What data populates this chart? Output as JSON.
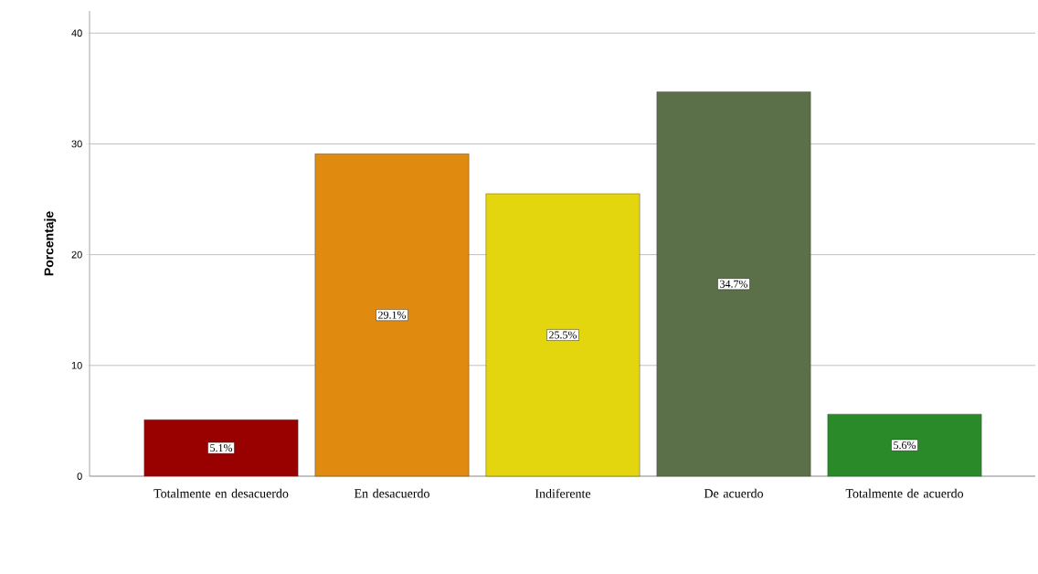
{
  "chart_data": {
    "type": "bar",
    "ylabel": "Porcentaje",
    "categories": [
      "Totalmente en desacuerdo",
      "En desacuerdo",
      "Indiferente",
      "De acuerdo",
      "Totalmente de acuerdo"
    ],
    "values": [
      5.1,
      29.1,
      25.5,
      34.7,
      5.6
    ],
    "colors": [
      "#990000",
      "#e08a10",
      "#e3d60f",
      "#5b7049",
      "#2a8a2a"
    ],
    "value_labels": [
      "5.1%",
      "29.1%",
      "25.5%",
      "34.7%",
      "5.6%"
    ],
    "ylim": [
      0,
      42
    ],
    "yticks": [
      0,
      10,
      20,
      30,
      40
    ],
    "grid": "y"
  }
}
